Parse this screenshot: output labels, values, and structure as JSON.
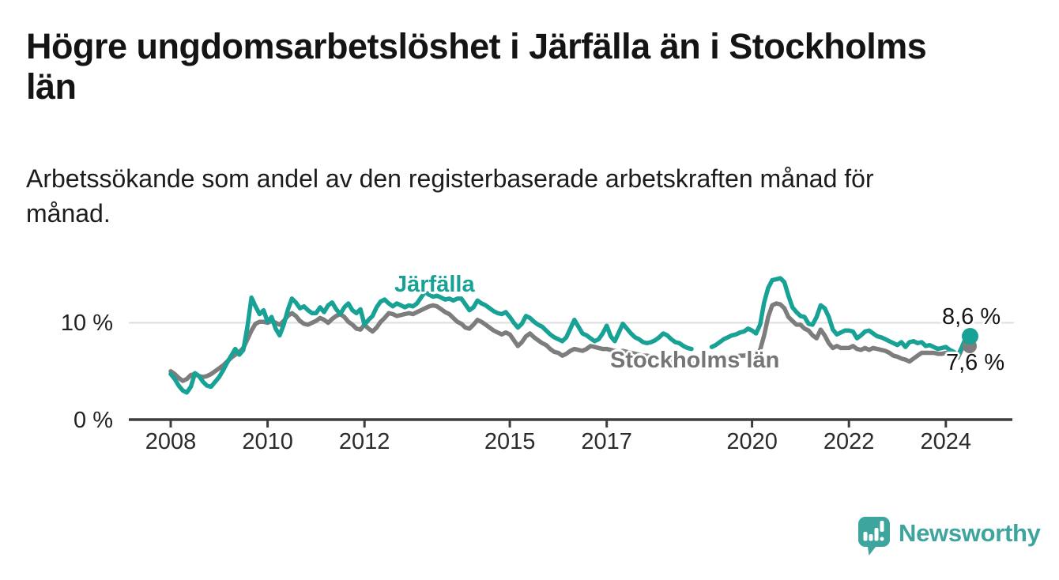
{
  "title_lines": [
    "Högre ungdomsarbetslöshet i Järfälla än i Stockholms",
    "län"
  ],
  "subtitle_lines": [
    "Arbetssökande som andel av den registerbaserade arbetskraften månad för",
    "månad."
  ],
  "y_axis": {
    "ticks": [
      {
        "value": 10,
        "label": "10 %"
      },
      {
        "value": 0,
        "label": "0 %"
      }
    ]
  },
  "x_axis": {
    "tick_labels": [
      "2008",
      "2010",
      "2012",
      "2015",
      "2017",
      "2020",
      "2022",
      "2024"
    ]
  },
  "series_labels": {
    "jarfalla": "Järfälla",
    "stockholm": "Stockholms län"
  },
  "end_labels": {
    "jarfalla": "8,6 %",
    "stockholm": "7,6 %"
  },
  "branding": {
    "name": "Newsworthy",
    "icon": "speech-bubble-bar-chart-icon"
  },
  "colors": {
    "jarfalla": "#17a295",
    "stockholm": "#7d7d7d",
    "stockholm_label": "#757575",
    "grid": "#dedede",
    "axis": "#3d3d3d",
    "value_label": "#151515",
    "logo": "#3da49e",
    "title": "#141414"
  },
  "chart_data": {
    "type": "line",
    "title": "Högre ungdomsarbetslöshet i Järfälla än i Stockholms län",
    "subtitle": "Arbetssökande som andel av den registerbaserade arbetskraften månad för månad.",
    "unit": "percent",
    "frequency": "monthly",
    "x_start": "2008-01",
    "x_end": "2024-07",
    "note": "null values = data gap Nov 2018 - Feb 2019",
    "ylim": [
      0,
      15.5
    ],
    "grid": "single horizontal gridline at 10 %",
    "legend_position": "inline series labels on chart",
    "x_tick_years": [
      2008,
      2010,
      2012,
      2015,
      2017,
      2020,
      2022,
      2024
    ],
    "y_tick_values": [
      0,
      10
    ],
    "series": [
      {
        "name": "Stockholms län",
        "color": "#7d7d7d",
        "end_value": 7.6,
        "end_label": "7,6 %",
        "values": [
          5.0,
          4.7,
          4.3,
          4.0,
          4.2,
          4.6,
          4.7,
          4.5,
          4.4,
          4.5,
          4.7,
          5.0,
          5.3,
          5.6,
          6.0,
          6.4,
          6.7,
          7.0,
          7.4,
          8.3,
          9.2,
          9.9,
          10.1,
          10.1,
          10.0,
          10.2,
          10.0,
          9.8,
          10.2,
          10.7,
          11.0,
          10.7,
          10.2,
          9.9,
          9.8,
          10.0,
          10.2,
          10.5,
          10.3,
          10.0,
          10.4,
          10.7,
          10.9,
          10.6,
          10.1,
          9.8,
          9.4,
          9.3,
          9.8,
          9.4,
          9.1,
          9.5,
          10.1,
          10.5,
          11.0,
          10.9,
          10.7,
          10.8,
          10.9,
          11.0,
          10.9,
          11.1,
          11.3,
          11.5,
          11.7,
          11.8,
          11.7,
          11.4,
          11.1,
          10.9,
          10.5,
          10.1,
          9.9,
          9.5,
          9.4,
          9.8,
          10.3,
          10.1,
          9.8,
          9.5,
          9.2,
          9.0,
          8.8,
          9.0,
          8.8,
          8.2,
          7.6,
          8.0,
          8.6,
          8.9,
          8.5,
          8.2,
          7.9,
          7.7,
          7.3,
          7.0,
          6.9,
          6.6,
          6.8,
          7.1,
          7.3,
          7.2,
          7.1,
          7.3,
          7.6,
          7.5,
          7.4,
          7.3,
          7.3,
          7.2,
          7.1,
          7.0,
          7.1,
          7.0,
          6.9,
          6.8,
          6.7,
          6.6,
          6.6,
          6.5,
          6.4,
          6.3,
          6.3,
          6.2,
          6.1,
          6.1,
          6.0,
          6.0,
          5.9,
          5.9,
          null,
          null,
          null,
          null,
          6.0,
          6.1,
          6.2,
          6.3,
          6.4,
          6.5,
          6.5,
          6.6,
          6.6,
          6.7,
          6.8,
          6.8,
          7.2,
          8.7,
          10.6,
          11.8,
          12.0,
          11.9,
          11.5,
          10.6,
          10.2,
          9.8,
          9.8,
          9.4,
          9.2,
          8.7,
          8.4,
          9.3,
          8.7,
          7.9,
          7.4,
          7.6,
          7.4,
          7.4,
          7.4,
          7.6,
          7.3,
          7.2,
          7.4,
          7.2,
          7.4,
          7.3,
          7.2,
          7.1,
          6.9,
          6.6,
          6.5,
          6.3,
          6.2,
          6.0,
          6.3,
          6.6,
          6.9,
          6.9,
          6.9,
          6.9,
          6.8,
          6.8,
          6.9,
          6.9,
          6.7,
          6.4,
          7.3,
          7.7,
          7.6
        ]
      },
      {
        "name": "Järfälla",
        "color": "#17a295",
        "end_value": 8.6,
        "end_label": "8,6 %",
        "values": [
          4.7,
          4.2,
          3.5,
          3.0,
          2.8,
          3.4,
          4.8,
          4.5,
          3.9,
          3.5,
          3.4,
          3.9,
          4.4,
          5.1,
          5.9,
          6.6,
          7.3,
          6.7,
          7.2,
          9.6,
          12.6,
          11.7,
          10.9,
          11.3,
          10.1,
          10.6,
          9.4,
          8.7,
          9.8,
          11.3,
          12.5,
          12.1,
          11.5,
          11.7,
          11.3,
          11.0,
          11.0,
          11.6,
          11.1,
          11.8,
          12.1,
          11.4,
          10.9,
          11.6,
          12.0,
          11.3,
          11.0,
          11.4,
          9.8,
          10.3,
          10.7,
          11.6,
          12.2,
          12.4,
          12.0,
          11.7,
          12.0,
          11.8,
          11.6,
          11.8,
          11.7,
          12.0,
          12.6,
          13.2,
          12.9,
          12.7,
          12.8,
          12.6,
          12.4,
          12.5,
          12.3,
          12.5,
          12.5,
          11.9,
          11.3,
          11.6,
          12.3,
          12.0,
          11.8,
          11.5,
          11.2,
          11.0,
          10.9,
          11.1,
          10.6,
          10.0,
          9.5,
          9.9,
          10.7,
          10.5,
          10.1,
          9.8,
          9.6,
          9.2,
          8.8,
          8.5,
          8.3,
          8.1,
          8.5,
          9.4,
          10.3,
          9.6,
          8.9,
          8.7,
          8.4,
          8.1,
          8.3,
          8.9,
          9.7,
          8.6,
          8.1,
          9.0,
          9.9,
          9.4,
          8.9,
          8.5,
          8.3,
          8.0,
          7.9,
          8.0,
          8.2,
          8.5,
          8.9,
          8.7,
          8.3,
          8.0,
          7.9,
          7.6,
          7.4,
          7.3,
          null,
          null,
          null,
          null,
          7.5,
          7.7,
          8.0,
          8.3,
          8.5,
          8.7,
          8.8,
          9.0,
          9.1,
          9.4,
          9.2,
          8.9,
          9.8,
          12.1,
          13.6,
          14.4,
          14.5,
          14.6,
          14.2,
          12.8,
          11.6,
          11.1,
          10.7,
          10.6,
          9.9,
          9.8,
          10.6,
          11.8,
          11.5,
          10.6,
          9.3,
          8.8,
          9.0,
          9.2,
          9.2,
          9.1,
          8.4,
          8.7,
          9.1,
          9.2,
          8.9,
          8.6,
          8.5,
          8.3,
          8.1,
          7.9,
          7.7,
          8.0,
          7.5,
          8.0,
          8.1,
          7.9,
          8.0,
          7.6,
          7.7,
          7.5,
          7.3,
          7.4,
          7.5,
          7.2,
          7.0,
          6.6,
          7.5,
          8.5,
          8.6
        ]
      }
    ]
  }
}
